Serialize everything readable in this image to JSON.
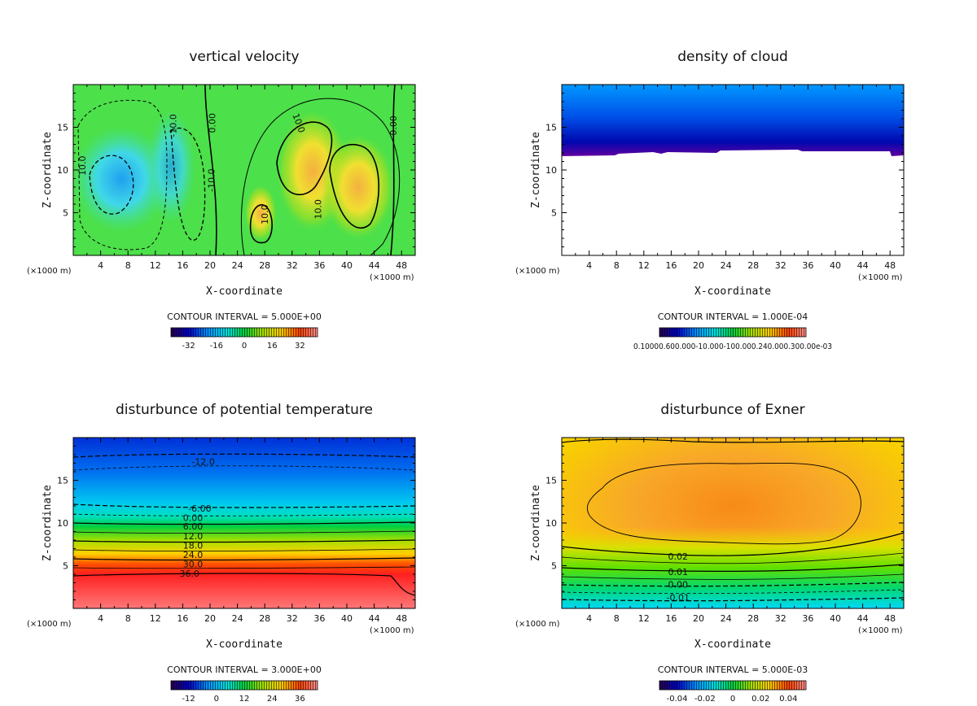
{
  "colors": {
    "frame": "#000000",
    "background": "#ffffff"
  },
  "chart_data": [
    {
      "type": "heatmap",
      "id": "vv",
      "title": "vertical velocity",
      "xlabel": "X-coordinate",
      "ylabel": "Z-coordinate",
      "x_unit_left": "(×1000 m)",
      "x_unit_right": "(×1000 m)",
      "xlim": [
        0,
        50
      ],
      "ylim": [
        0,
        20
      ],
      "xticks": [
        4,
        8,
        12,
        16,
        20,
        24,
        28,
        32,
        36,
        40,
        44,
        48
      ],
      "yticks": [
        5,
        10,
        15
      ],
      "contour_interval_text": "CONTOUR INTERVAL = 5.000E+00",
      "colorbar_labels": [
        "-32",
        "-16",
        "0",
        "16",
        "32"
      ],
      "contour_labels": [
        {
          "text": "10.0",
          "x": 1.3,
          "z": 10.5,
          "rot": -90
        },
        {
          "text": "-10.0",
          "x": 14.6,
          "z": 15.2,
          "rot": -90
        },
        {
          "text": "0.00",
          "x": 20.3,
          "z": 15.5,
          "rot": -90
        },
        {
          "text": "-10.0",
          "x": 20.2,
          "z": 8.8,
          "rot": -90
        },
        {
          "text": "10.0",
          "x": 33.0,
          "z": 15.5,
          "rot": 70
        },
        {
          "text": "10.0",
          "x": 28.0,
          "z": 4.8,
          "rot": -90
        },
        {
          "text": "10.0",
          "x": 35.8,
          "z": 5.4,
          "rot": -90
        },
        {
          "text": "0.00",
          "x": 46.8,
          "z": 15.2,
          "rot": -90
        }
      ],
      "features": [
        {
          "kind": "updraft",
          "x": 35,
          "z": 10,
          "peak": 22
        },
        {
          "kind": "updraft",
          "x": 41,
          "z": 9,
          "peak": 24
        },
        {
          "kind": "updraft",
          "x": 27,
          "z": 5,
          "peak": 18
        },
        {
          "kind": "downdraft",
          "x": 7,
          "z": 8,
          "peak": -22
        },
        {
          "kind": "downdraft",
          "x": 15,
          "z": 10,
          "peak": -16
        }
      ]
    },
    {
      "type": "heatmap",
      "id": "dc",
      "title": "density of cloud",
      "xlabel": "X-coordinate",
      "ylabel": "Z-coordinate",
      "x_unit_left": "(×1000 m)",
      "x_unit_right": "(×1000 m)",
      "xlim": [
        0,
        50
      ],
      "ylim": [
        0,
        20
      ],
      "xticks": [
        4,
        8,
        12,
        16,
        20,
        24,
        28,
        32,
        36,
        40,
        44,
        48
      ],
      "yticks": [
        5,
        10,
        15
      ],
      "contour_interval_text": "CONTOUR INTERVAL = 1.000E-04",
      "colorbar_label_text": "0.10000.600.000-10.000-100.000.240.000.300.00e-03",
      "cloud_base_z": 12,
      "cloud_top_z": 20
    },
    {
      "type": "heatmap",
      "id": "dpt",
      "title": "disturbunce of potential temperature",
      "xlabel": "X-coordinate",
      "ylabel": "Z-coordinate",
      "x_unit_left": "(×1000 m)",
      "x_unit_right": "(×1000 m)",
      "xlim": [
        0,
        50
      ],
      "ylim": [
        0,
        20
      ],
      "xticks": [
        4,
        8,
        12,
        16,
        20,
        24,
        28,
        32,
        36,
        40,
        44,
        48
      ],
      "yticks": [
        5,
        10,
        15
      ],
      "contour_interval_text": "CONTOUR INTERVAL = 3.000E+00",
      "colorbar_labels": [
        "-12",
        "0",
        "12",
        "24",
        "36"
      ],
      "contour_labels": [
        {
          "text": "-12.0",
          "x": 19,
          "z": 17.2
        },
        {
          "text": "-6.00",
          "x": 18.5,
          "z": 11.7
        },
        {
          "text": "0.00",
          "x": 17.5,
          "z": 10.6
        },
        {
          "text": "6.00",
          "x": 17.5,
          "z": 9.6
        },
        {
          "text": "12.0",
          "x": 17.5,
          "z": 8.5
        },
        {
          "text": "18.0",
          "x": 17.5,
          "z": 7.4
        },
        {
          "text": "24.0",
          "x": 17.5,
          "z": 6.3
        },
        {
          "text": "30.0",
          "x": 17.5,
          "z": 5.2
        },
        {
          "text": "36.0",
          "x": 17,
          "z": 4.1
        }
      ]
    },
    {
      "type": "heatmap",
      "id": "dex",
      "title": "disturbunce of Exner",
      "xlabel": "X-coordinate",
      "ylabel": "Z-coordinate",
      "x_unit_left": "(×1000 m)",
      "x_unit_right": "(×1000 m)",
      "xlim": [
        0,
        50
      ],
      "ylim": [
        0,
        20
      ],
      "xticks": [
        4,
        8,
        12,
        16,
        20,
        24,
        28,
        32,
        36,
        40,
        44,
        48
      ],
      "yticks": [
        5,
        10,
        15
      ],
      "contour_interval_text": "CONTOUR INTERVAL = 5.000E-03",
      "colorbar_labels": [
        "-0.04",
        "-0.02",
        "0",
        "0.02",
        "0.04"
      ],
      "contour_labels": [
        {
          "text": "0.02",
          "x": 17,
          "z": 6.1
        },
        {
          "text": "0.01",
          "x": 17,
          "z": 4.3
        },
        {
          "text": "0.00",
          "x": 17,
          "z": 2.8
        },
        {
          "text": "-0.01",
          "x": 17,
          "z": 1.3
        }
      ]
    }
  ]
}
